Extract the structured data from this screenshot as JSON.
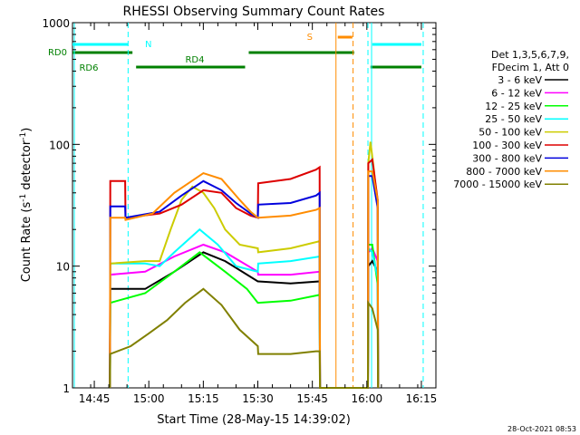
{
  "chart_data": {
    "type": "line",
    "title": "RHESSI Observing Summary Count Rates",
    "xlabel": "Start Time (28-May-15 14:39:02)",
    "ylabel_main": "Count Rate (s",
    "ylabel_sup1": "-1",
    "ylabel_mid": " detector",
    "ylabel_sup2": "-1",
    "ylabel_end": ")",
    "yscale": "log",
    "ylim": [
      1,
      1000
    ],
    "xlim_minutes": [
      0,
      100
    ],
    "x_ticks": [
      {
        "label": "14:45",
        "t": 6
      },
      {
        "label": "15:00",
        "t": 21
      },
      {
        "label": "15:15",
        "t": 36
      },
      {
        "label": "15:30",
        "t": 51
      },
      {
        "label": "15:45",
        "t": 66
      },
      {
        "label": "16:00",
        "t": 81
      },
      {
        "label": "16:15",
        "t": 96
      }
    ],
    "y_ticks": [
      {
        "label": "1",
        "v": 1
      },
      {
        "label": "10",
        "v": 10
      },
      {
        "label": "100",
        "v": 100
      },
      {
        "label": "1000",
        "v": 1000
      }
    ],
    "legend_header": [
      "Det 1,3,5,6,7,9,",
      "FDecim 1, Att 0"
    ],
    "series": [
      {
        "name": "3 - 6 keV",
        "color": "#000000",
        "points": [
          [
            10.3,
            1
          ],
          [
            10.4,
            6.5
          ],
          [
            20,
            6.5
          ],
          [
            28,
            9
          ],
          [
            36,
            13
          ],
          [
            42,
            11
          ],
          [
            51,
            7.5
          ],
          [
            51.1,
            7.5
          ],
          [
            60,
            7.2
          ],
          [
            68,
            7.5
          ],
          [
            68.1,
            1
          ],
          [
            81.3,
            1
          ],
          [
            81.4,
            10
          ],
          [
            82.5,
            11
          ],
          [
            84,
            9
          ],
          [
            84.1,
            1
          ]
        ]
      },
      {
        "name": "6 - 12 keV",
        "color": "#ff00ff",
        "points": [
          [
            10.3,
            1
          ],
          [
            10.4,
            8.5
          ],
          [
            20,
            9
          ],
          [
            28,
            12
          ],
          [
            36,
            15
          ],
          [
            42,
            13
          ],
          [
            51,
            9
          ],
          [
            51.1,
            8.5
          ],
          [
            60,
            8.5
          ],
          [
            68,
            9
          ],
          [
            68.1,
            1
          ],
          [
            81.3,
            1
          ],
          [
            81.4,
            13
          ],
          [
            82.5,
            14
          ],
          [
            84,
            11
          ],
          [
            84.1,
            1
          ]
        ]
      },
      {
        "name": "12 - 25 keV",
        "color": "#00ff00",
        "points": [
          [
            10.3,
            1
          ],
          [
            10.4,
            5
          ],
          [
            20,
            6
          ],
          [
            28,
            9
          ],
          [
            35,
            13
          ],
          [
            42,
            9
          ],
          [
            48,
            6.5
          ],
          [
            51,
            5
          ],
          [
            51.1,
            5
          ],
          [
            60,
            5.2
          ],
          [
            68,
            5.8
          ],
          [
            68.1,
            1
          ],
          [
            81.3,
            1
          ],
          [
            81.4,
            15
          ],
          [
            82.5,
            15
          ],
          [
            84,
            7
          ],
          [
            84.1,
            1
          ]
        ]
      },
      {
        "name": "25 - 50 keV",
        "color": "#00ffff",
        "points": [
          [
            10.3,
            1
          ],
          [
            10.4,
            10.5
          ],
          [
            20,
            10.5
          ],
          [
            24,
            10
          ],
          [
            28,
            13
          ],
          [
            35,
            20
          ],
          [
            40,
            15
          ],
          [
            45,
            10
          ],
          [
            51,
            9
          ],
          [
            51.1,
            10.5
          ],
          [
            60,
            11
          ],
          [
            68,
            12
          ],
          [
            68.1,
            1
          ],
          [
            81.3,
            1
          ],
          [
            81.4,
            14
          ],
          [
            82.5,
            13
          ],
          [
            84,
            8
          ],
          [
            84.1,
            1
          ]
        ]
      },
      {
        "name": "50 - 100 keV",
        "color": "#cccc00",
        "points": [
          [
            10.3,
            1
          ],
          [
            10.4,
            10.5
          ],
          [
            20,
            11
          ],
          [
            24,
            11
          ],
          [
            27,
            20
          ],
          [
            30,
            35
          ],
          [
            33,
            45
          ],
          [
            36,
            40
          ],
          [
            39,
            30
          ],
          [
            42,
            20
          ],
          [
            46,
            15
          ],
          [
            51,
            14
          ],
          [
            51.1,
            13
          ],
          [
            60,
            14
          ],
          [
            68,
            16
          ],
          [
            68.1,
            1
          ],
          [
            81.3,
            1
          ],
          [
            81.4,
            70
          ],
          [
            82,
            105
          ],
          [
            83,
            60
          ],
          [
            84,
            30
          ],
          [
            84.1,
            1
          ]
        ]
      },
      {
        "name": "100 - 300 keV",
        "color": "#dd0000",
        "points": [
          [
            10.3,
            1
          ],
          [
            10.4,
            50
          ],
          [
            14.5,
            50
          ],
          [
            14.6,
            25
          ],
          [
            24,
            27
          ],
          [
            30,
            32
          ],
          [
            36,
            42
          ],
          [
            41,
            40
          ],
          [
            45,
            30
          ],
          [
            49,
            26
          ],
          [
            51,
            25
          ],
          [
            51.1,
            48
          ],
          [
            60,
            52
          ],
          [
            67,
            62
          ],
          [
            68,
            65
          ],
          [
            68.1,
            1
          ],
          [
            81.3,
            1
          ],
          [
            81.4,
            70
          ],
          [
            82.5,
            75
          ],
          [
            84,
            35
          ],
          [
            84.1,
            1
          ]
        ]
      },
      {
        "name": "300 - 800 keV",
        "color": "#0000dd",
        "points": [
          [
            10.3,
            1
          ],
          [
            10.4,
            31
          ],
          [
            14.5,
            31
          ],
          [
            14.6,
            25
          ],
          [
            24,
            28
          ],
          [
            30,
            38
          ],
          [
            36,
            50
          ],
          [
            41,
            42
          ],
          [
            45,
            33
          ],
          [
            49,
            27
          ],
          [
            51,
            25
          ],
          [
            51.1,
            32
          ],
          [
            60,
            33
          ],
          [
            67,
            38
          ],
          [
            68,
            40
          ],
          [
            68.1,
            1
          ],
          [
            81.3,
            1
          ],
          [
            81.4,
            55
          ],
          [
            82.5,
            55
          ],
          [
            84,
            30
          ],
          [
            84.1,
            1
          ]
        ]
      },
      {
        "name": "800 - 7000 keV",
        "color": "#ff8c00",
        "points": [
          [
            10.3,
            1
          ],
          [
            10.4,
            25
          ],
          [
            14.5,
            25
          ],
          [
            14.6,
            24
          ],
          [
            22,
            27
          ],
          [
            28,
            40
          ],
          [
            36,
            58
          ],
          [
            41,
            52
          ],
          [
            46,
            35
          ],
          [
            49,
            28
          ],
          [
            51,
            25
          ],
          [
            51.1,
            25
          ],
          [
            60,
            26
          ],
          [
            67,
            29
          ],
          [
            68,
            30
          ],
          [
            68.1,
            1
          ],
          [
            81.3,
            1
          ],
          [
            81.4,
            60
          ],
          [
            82.5,
            60
          ],
          [
            84,
            35
          ],
          [
            84.1,
            1
          ]
        ]
      },
      {
        "name": "7000 - 15000 keV",
        "color": "#808000",
        "points": [
          [
            10.3,
            1
          ],
          [
            10.4,
            1.9
          ],
          [
            16,
            2.2
          ],
          [
            21,
            2.8
          ],
          [
            26,
            3.6
          ],
          [
            31,
            5
          ],
          [
            36,
            6.5
          ],
          [
            41,
            4.8
          ],
          [
            46,
            3
          ],
          [
            51,
            2.2
          ],
          [
            51.1,
            1.9
          ],
          [
            60,
            1.9
          ],
          [
            67,
            2
          ],
          [
            68,
            2
          ],
          [
            68.1,
            1
          ],
          [
            81.3,
            1
          ],
          [
            81.4,
            5
          ],
          [
            82.5,
            4.5
          ],
          [
            84,
            3
          ],
          [
            84.1,
            1
          ]
        ]
      }
    ],
    "status_bars": [
      {
        "label": "N",
        "color": "#00ffff",
        "segments": [
          [
            0,
            15.3
          ],
          [
            82.5,
            96
          ]
        ],
        "level": "top"
      },
      {
        "label": "S",
        "color": "#ff8c00",
        "segments": [
          [
            73,
            77
          ]
        ],
        "level": "top-s"
      },
      {
        "label": "RD0",
        "color": "#008000",
        "segments": [
          [
            0,
            16.5
          ],
          [
            48.5,
            77.5
          ]
        ],
        "level": "rd0"
      },
      {
        "label": "RD4",
        "color": "#008000",
        "segments": [
          [
            17.5,
            47.5
          ],
          [
            82,
            96
          ]
        ],
        "level": "rd4"
      },
      {
        "label": "RD6",
        "color": "#008000",
        "segments": [],
        "level": "rd6"
      }
    ],
    "vlines_dashed": [
      {
        "t": 15.3,
        "color": "#00ffff"
      },
      {
        "t": 77.2,
        "color": "#ff8c00"
      },
      {
        "t": 81.3,
        "color": "#00ffff"
      },
      {
        "t": 96.5,
        "color": "#00ffff"
      }
    ],
    "vlines_solid": [
      {
        "t": 0.5,
        "color": "#00ffff"
      },
      {
        "t": 72.5,
        "color": "#ff8c00"
      },
      {
        "t": 82.3,
        "color": "#00ffff"
      }
    ],
    "footer_date": "28-Oct-2021 08:53",
    "grid": false,
    "legend_position": "right"
  }
}
